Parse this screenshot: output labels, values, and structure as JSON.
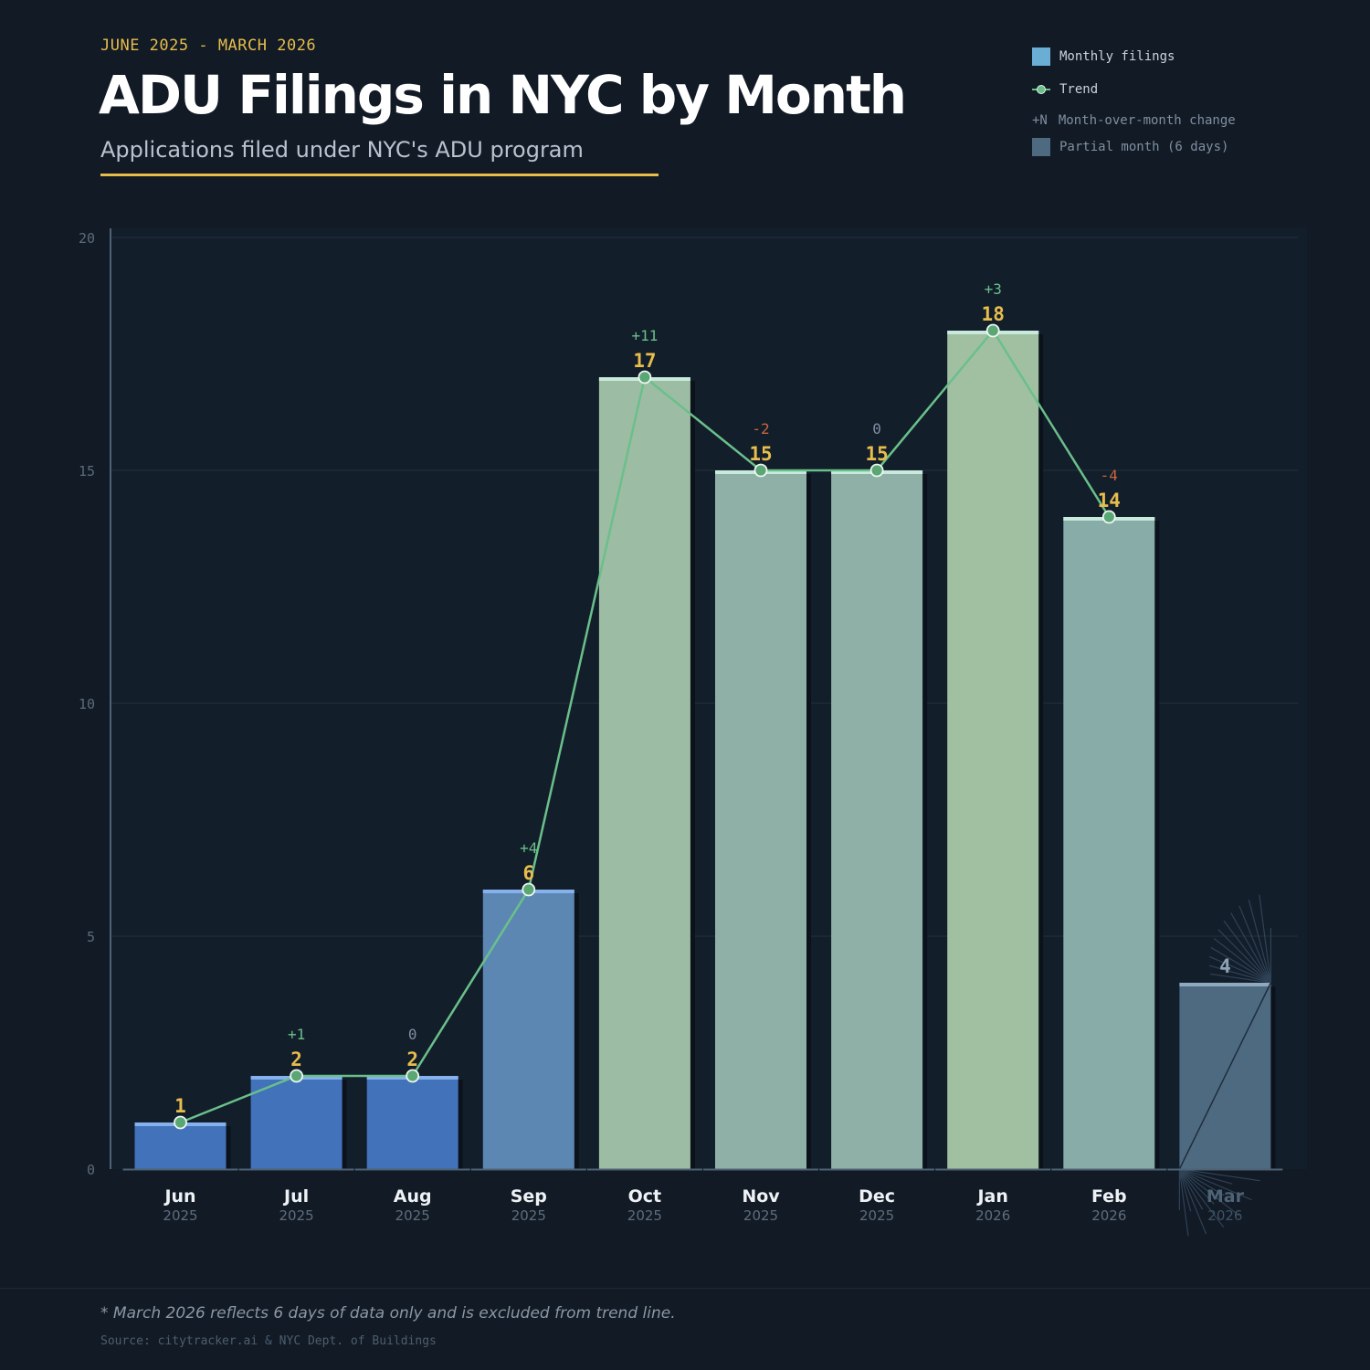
{
  "header": {
    "date_range": "JUNE 2025 - MARCH 2026",
    "title": "ADU Filings in NYC by Month",
    "subtitle": "Applications filed under NYC's ADU program"
  },
  "legend": {
    "monthly_filings": "Monthly filings",
    "trend": "Trend",
    "change_symbol": "+N",
    "change_label": "Month-over-month change",
    "partial_label": "Partial month (6 days)"
  },
  "footer": {
    "note": "* March 2026 reflects 6 days of data only and is excluded from trend line.",
    "source": "Source: citytracker.ai & NYC Dept. of Buildings"
  },
  "colors": {
    "background": "#111a25",
    "accent": "#e7bd4c",
    "trend": "#6ac08a",
    "positive": "#6ac08a",
    "negative": "#c8663e",
    "neutral": "#7f8fa0",
    "partial": "#4e6a80",
    "low_bar": "#4272ba",
    "high_bar": "#9dbea2"
  },
  "chart_data": {
    "type": "bar",
    "categories": [
      "Jun",
      "Jul",
      "Aug",
      "Sep",
      "Oct",
      "Nov",
      "Dec",
      "Jan",
      "Feb",
      "Mar"
    ],
    "years": [
      "2025",
      "2025",
      "2025",
      "2025",
      "2025",
      "2025",
      "2025",
      "2026",
      "2026",
      "2026"
    ],
    "values": [
      1,
      2,
      2,
      6,
      17,
      15,
      15,
      18,
      14,
      4
    ],
    "changes": [
      "",
      "+1",
      "0",
      "+4",
      "+11",
      "-2",
      "0",
      "+3",
      "-4",
      ""
    ],
    "partial": [
      false,
      false,
      false,
      false,
      false,
      false,
      false,
      false,
      false,
      true
    ],
    "bar_colors": [
      "#4272ba",
      "#4272ba",
      "#4272ba",
      "#5c87b3",
      "#9dbca4",
      "#8fb0a6",
      "#8fb0a6",
      "#a1c0a2",
      "#88aca7",
      "#4e6a80"
    ],
    "series": [
      {
        "name": "Monthly filings",
        "values": [
          1,
          2,
          2,
          6,
          17,
          15,
          15,
          18,
          14,
          4
        ]
      },
      {
        "name": "Trend",
        "values": [
          1,
          2,
          2,
          6,
          17,
          15,
          15,
          18,
          14,
          null
        ]
      }
    ],
    "ylim": [
      0,
      20
    ],
    "yticks": [
      0,
      5,
      10,
      15,
      20
    ],
    "grid": true,
    "legend_position": "top-right"
  }
}
